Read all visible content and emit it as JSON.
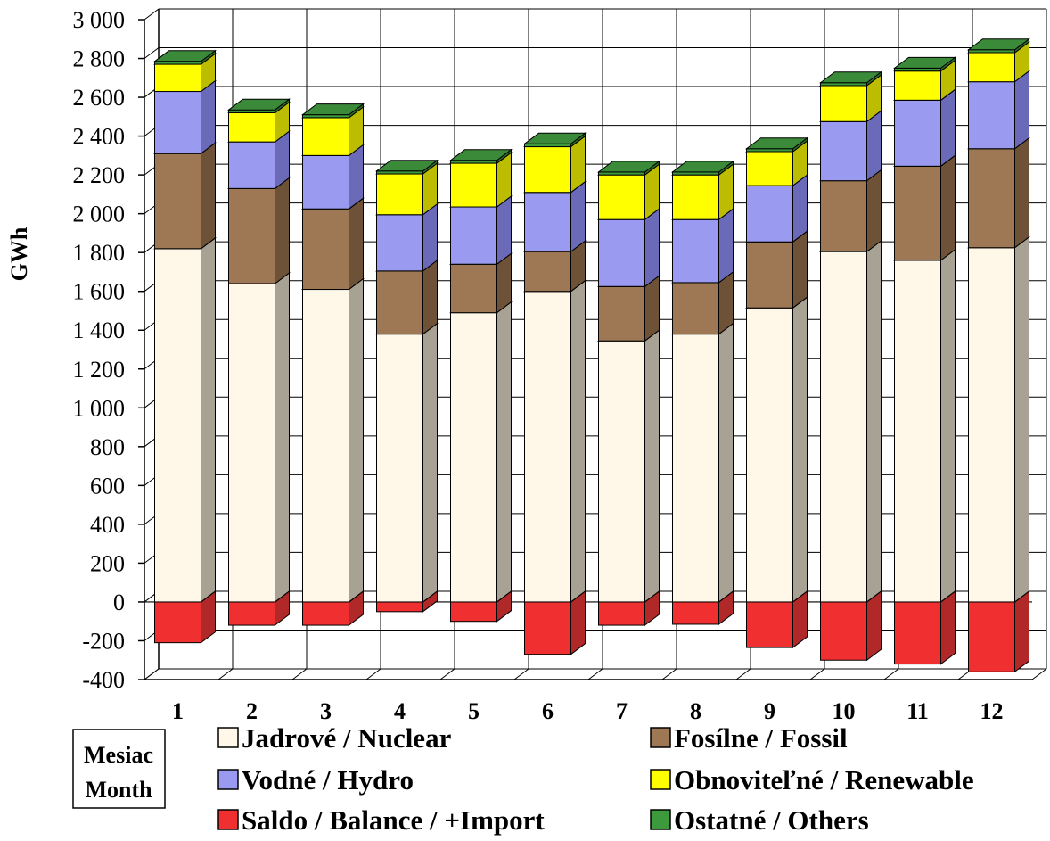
{
  "chart_data": {
    "type": "bar",
    "stacked": true,
    "three_d": true,
    "categories": [
      "1",
      "2",
      "3",
      "4",
      "5",
      "6",
      "7",
      "8",
      "9",
      "10",
      "11",
      "12"
    ],
    "series": [
      {
        "name": "Jadrové / Nuclear",
        "color": "#FFF8E8",
        "side": "#A8A294",
        "top": "#E8E0CC",
        "values": [
          1820,
          1640,
          1610,
          1380,
          1490,
          1600,
          1345,
          1380,
          1515,
          1805,
          1760,
          1825
        ]
      },
      {
        "name": "Fosílne / Fossil",
        "color": "#9E7854",
        "side": "#6E5238",
        "top": "#8A6A4A",
        "values": [
          490,
          490,
          415,
          325,
          250,
          205,
          280,
          265,
          340,
          365,
          485,
          510
        ]
      },
      {
        "name": "Vodné / Hydro",
        "color": "#9A9AF0",
        "side": "#6A6AB8",
        "top": "#8686E0",
        "values": [
          320,
          240,
          275,
          290,
          295,
          305,
          345,
          325,
          290,
          305,
          340,
          345
        ]
      },
      {
        "name": "Obnoviteľné / Renewable",
        "color": "#FFFF00",
        "side": "#BCBC00",
        "top": "#E6E600",
        "values": [
          140,
          150,
          195,
          210,
          225,
          235,
          230,
          230,
          175,
          185,
          150,
          150
        ]
      },
      {
        "name": "Ostatné / Others",
        "color": "#3C9A3C",
        "side": "#2A6E2A",
        "top": "#3A8A3A",
        "values": [
          15,
          15,
          15,
          15,
          15,
          15,
          15,
          15,
          15,
          15,
          15,
          15
        ]
      },
      {
        "name": "Saldo / Balance / +Import",
        "color": "#F03030",
        "side": "#B02828",
        "top": "#D02C2C",
        "values": [
          -210,
          -120,
          -120,
          -50,
          -100,
          -270,
          -120,
          -115,
          -235,
          -300,
          -320,
          -360
        ]
      }
    ],
    "ylabel": "GWh",
    "xlabel": "Mesiac Month",
    "ylim": [
      -400,
      3000
    ],
    "yticks": [
      3000,
      2800,
      2600,
      2400,
      2200,
      2000,
      1800,
      1600,
      1400,
      1200,
      1000,
      800,
      600,
      400,
      200,
      0,
      -200,
      -400
    ],
    "ytick_labels": [
      "3 000",
      "2 800",
      "2 600",
      "2 400",
      "2 200",
      "2 000",
      "1 800",
      "1 600",
      "1 400",
      "1 200",
      "1 000",
      "800",
      "600",
      "400",
      "200",
      "0",
      "-200",
      "-400"
    ],
    "grid": true,
    "legend_position": "bottom"
  },
  "xaxis_box": {
    "line1": "Mesiac",
    "line2": "Month"
  }
}
